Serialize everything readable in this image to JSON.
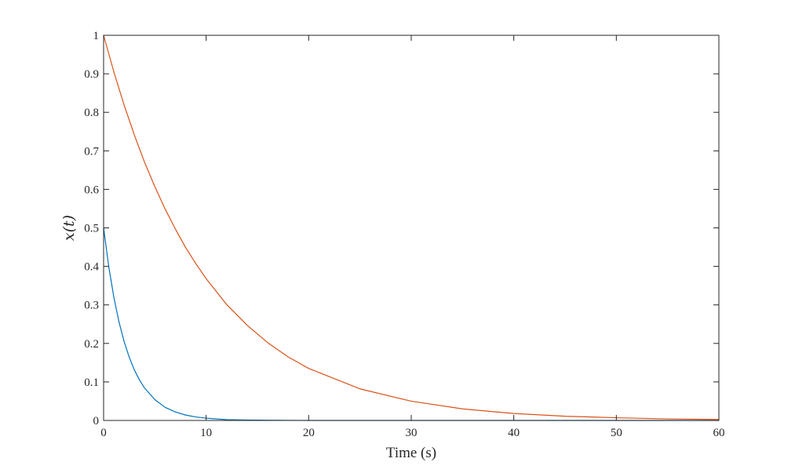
{
  "chart_data": {
    "type": "line",
    "title": "",
    "xlabel": "Time (s)",
    "ylabel": "x(t)",
    "xlim": [
      0,
      60
    ],
    "ylim": [
      0,
      1
    ],
    "x_ticks": [
      0,
      10,
      20,
      30,
      40,
      50,
      60
    ],
    "y_ticks": [
      0,
      0.1,
      0.2,
      0.3,
      0.4,
      0.5,
      0.6,
      0.7,
      0.8,
      0.9,
      1
    ],
    "grid": false,
    "legend": "none",
    "series": [
      {
        "color": "#0072bd",
        "x": [
          0,
          0.5,
          1,
          1.5,
          2,
          2.5,
          3,
          3.5,
          4,
          5,
          6,
          7,
          8,
          9,
          10,
          12,
          14,
          16,
          20,
          30,
          40,
          50,
          60
        ],
        "y": [
          0.5,
          0.4,
          0.32,
          0.256,
          0.205,
          0.164,
          0.131,
          0.105,
          0.084,
          0.054,
          0.034,
          0.022,
          0.014,
          0.009,
          0.006,
          0.002,
          0.001,
          0.0005,
          0,
          0,
          0,
          0,
          0
        ]
      },
      {
        "color": "#d95319",
        "x": [
          0,
          1,
          2,
          3,
          4,
          5,
          6,
          7,
          8,
          9,
          10,
          12,
          14,
          16,
          18,
          20,
          25,
          30,
          35,
          40,
          45,
          50,
          55,
          60
        ],
        "y": [
          1.0,
          0.905,
          0.819,
          0.741,
          0.67,
          0.607,
          0.549,
          0.497,
          0.449,
          0.407,
          0.368,
          0.301,
          0.247,
          0.202,
          0.165,
          0.135,
          0.082,
          0.05,
          0.03,
          0.018,
          0.011,
          0.007,
          0.004,
          0.0025
        ]
      }
    ]
  }
}
